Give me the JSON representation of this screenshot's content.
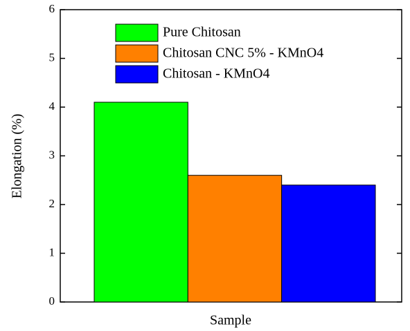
{
  "chart_data": {
    "type": "bar",
    "xlabel": "Sample",
    "ylabel": "Elongation (%)",
    "series": [
      {
        "name": "Pure Chitosan",
        "color": "#00ff00",
        "values": [
          4.1
        ]
      },
      {
        "name": "Chitosan CNC 5% - KMnO4",
        "color": "#ff8000",
        "values": [
          2.6
        ]
      },
      {
        "name": "Chitosan - KMnO4",
        "color": "#0000ff",
        "values": [
          2.4
        ]
      }
    ],
    "ylim": [
      0,
      6
    ],
    "yticks": [
      0,
      1,
      2,
      3,
      4,
      5,
      6
    ],
    "legend": "upper left"
  }
}
